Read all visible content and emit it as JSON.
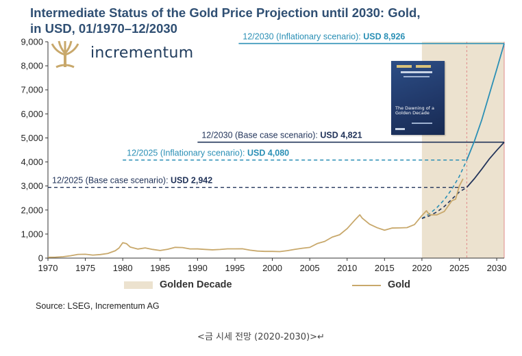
{
  "header": {
    "title_line1": "Intermediate Status of the Gold Price Projection until 2030: Gold,",
    "title_line2": "in USD, 01/1970–12/2030"
  },
  "logo": {
    "word": "incrementum",
    "icon": "tree-logo-icon"
  },
  "book": {
    "title": "The Dawning of a Golden Decade",
    "icon": "book-cover-icon"
  },
  "legend": {
    "area_label": "Golden Decade",
    "line_label": "Gold"
  },
  "source": "Source: LSEG, Incrementum AG",
  "caption": "<금 시세 전망 (2020-2030)>↵",
  "colors": {
    "gold": "#c8a86b",
    "golden_decade": "#ece2cf",
    "inflationary": "#2a8fb5",
    "base_case": "#22345a",
    "title": "#2f4f73"
  },
  "chart_data": {
    "type": "line",
    "xlim": [
      1970,
      2031
    ],
    "ylim": [
      0,
      9000
    ],
    "x_ticks": [
      "1970",
      "1975",
      "1980",
      "1985",
      "1990",
      "1995",
      "2000",
      "2005",
      "2010",
      "2015",
      "2020",
      "2025",
      "2030"
    ],
    "y_ticks": [
      "0",
      "1,000",
      "2,000",
      "3,000",
      "4,000",
      "5,000",
      "6,000",
      "7,000",
      "8,000",
      "9,000"
    ],
    "golden_decade": [
      2020,
      2031
    ],
    "series": [
      {
        "name": "Gold",
        "x": [
          1970,
          1971,
          1972,
          1973,
          1974,
          1975,
          1976,
          1977,
          1978,
          1979,
          1979.5,
          1980,
          1980.5,
          1981,
          1982,
          1983,
          1984,
          1985,
          1986,
          1987,
          1988,
          1989,
          1990,
          1991,
          1992,
          1993,
          1994,
          1995,
          1996,
          1997,
          1998,
          1999,
          2000,
          2001,
          2002,
          2003,
          2004,
          2005,
          2006,
          2007,
          2008,
          2009,
          2010,
          2011,
          2011.7,
          2012,
          2013,
          2014,
          2015,
          2016,
          2017,
          2018,
          2019,
          2020,
          2020.6,
          2021,
          2022,
          2023,
          2024,
          2024.5,
          2025,
          2025.5
        ],
        "y": [
          35,
          40,
          58,
          97,
          154,
          161,
          125,
          148,
          193,
          306,
          420,
          640,
          600,
          460,
          376,
          424,
          361,
          317,
          368,
          447,
          437,
          381,
          383,
          362,
          344,
          360,
          384,
          384,
          387,
          331,
          294,
          279,
          279,
          271,
          310,
          363,
          410,
          445,
          604,
          695,
          872,
          972,
          1225,
          1572,
          1800,
          1669,
          1411,
          1266,
          1160,
          1251,
          1257,
          1268,
          1393,
          1770,
          1970,
          1800,
          1800,
          1943,
          2386,
          2450,
          3000,
          3300
        ]
      },
      {
        "name": "12/2030 (Inflationary scenario)",
        "x": [
          2020,
          2021,
          2022,
          2023,
          2024,
          2025,
          2026,
          2027,
          2028,
          2029,
          2030,
          2031
        ],
        "y": [
          1650,
          1840,
          2100,
          2430,
          2870,
          3400,
          4080,
          4850,
          5750,
          6800,
          7850,
          8926
        ]
      },
      {
        "name": "12/2030 (Base case scenario)",
        "x": [
          2020,
          2021,
          2022,
          2023,
          2024,
          2025,
          2026,
          2027,
          2028,
          2029,
          2030,
          2031
        ],
        "y": [
          1650,
          1760,
          1920,
          2150,
          2450,
          2750,
          2942,
          3300,
          3700,
          4120,
          4480,
          4821
        ]
      }
    ],
    "annotations": [
      {
        "prefix": "12/2030 (Inflationary scenario): ",
        "value": "USD 8,926",
        "y": 8926,
        "x_start": 1995.5,
        "style": "solid",
        "color": "#2a8fb5"
      },
      {
        "prefix": "12/2030 (Base case scenario): ",
        "value": "USD 4,821",
        "y": 4821,
        "x_start": 1990,
        "style": "solid",
        "color": "#22345a"
      },
      {
        "prefix": "12/2025 (Inflationary scenario): ",
        "value": "USD 4,080",
        "y": 4080,
        "x_start": 1980,
        "style": "dashed",
        "color": "#2a8fb5"
      },
      {
        "prefix": "12/2025 (Base case scenario): ",
        "value": "USD 2,942",
        "y": 2942,
        "x_start": 1970,
        "style": "dashed",
        "color": "#22345a"
      }
    ],
    "vline_x": 2026
  }
}
